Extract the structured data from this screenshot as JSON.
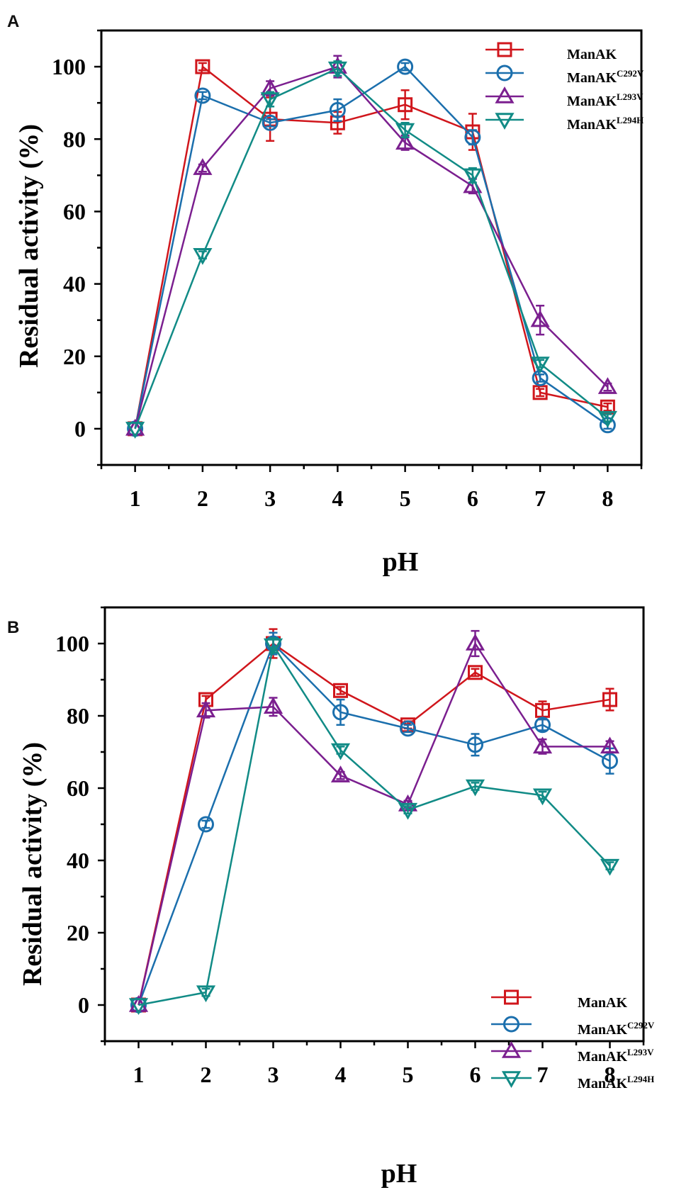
{
  "chart_data": [
    {
      "panel": "A",
      "type": "line",
      "xlabel": "pH",
      "ylabel": "Residual activity (%)",
      "x": [
        1,
        2,
        3,
        4,
        5,
        6,
        7,
        8
      ],
      "xlim": [
        0.5,
        8.5
      ],
      "ylim": [
        -10,
        110
      ],
      "xticks": [
        1,
        2,
        3,
        4,
        5,
        6,
        7,
        8
      ],
      "yticks": [
        0,
        20,
        40,
        60,
        80,
        100
      ],
      "legend_position": "top-right",
      "series": [
        {
          "name": "ManAK",
          "sup": "",
          "marker": "square",
          "color": "#d0161c",
          "values": [
            0,
            100,
            85.5,
            84.5,
            89.5,
            82,
            10,
            6
          ],
          "errors": [
            0,
            1,
            6,
            3,
            4,
            5,
            1,
            1
          ]
        },
        {
          "name": "ManAK",
          "sup": "C292V",
          "marker": "circle",
          "color": "#1b6fad",
          "values": [
            0,
            92,
            84.5,
            88,
            100,
            80.5,
            14,
            1
          ],
          "errors": [
            0,
            1,
            1,
            3,
            1,
            2,
            1,
            1
          ]
        },
        {
          "name": "ManAK",
          "sup": "L293V",
          "marker": "triangle-up",
          "color": "#7b1f8f",
          "values": [
            0,
            72,
            94,
            100,
            79,
            67,
            30,
            11.5
          ],
          "errors": [
            0,
            1,
            2,
            3,
            2,
            2,
            4,
            1
          ]
        },
        {
          "name": "ManAK",
          "sup": "L294H",
          "marker": "triangle-down",
          "color": "#118b86",
          "values": [
            0,
            48,
            91,
            99.5,
            82.5,
            70,
            18,
            3
          ],
          "errors": [
            0,
            1,
            2,
            2,
            2,
            2,
            1,
            1
          ]
        }
      ]
    },
    {
      "panel": "B",
      "type": "line",
      "xlabel": "pH",
      "ylabel": "Residual activity (%)",
      "x": [
        1,
        2,
        3,
        4,
        5,
        6,
        7,
        8
      ],
      "xlim": [
        0.5,
        8.5
      ],
      "ylim": [
        -10,
        110
      ],
      "xticks": [
        1,
        2,
        3,
        4,
        5,
        6,
        7,
        8
      ],
      "yticks": [
        0,
        20,
        40,
        60,
        80,
        100
      ],
      "legend_position": "bottom-right",
      "series": [
        {
          "name": "ManAK",
          "sup": "",
          "marker": "square",
          "color": "#d0161c",
          "values": [
            0,
            84.5,
            100,
            87,
            77.5,
            92,
            81.5,
            84.5
          ],
          "errors": [
            0,
            1,
            4,
            1,
            1,
            1,
            2.5,
            3
          ]
        },
        {
          "name": "ManAK",
          "sup": "C292V",
          "marker": "circle",
          "color": "#1b6fad",
          "values": [
            0,
            50,
            100,
            81,
            76.5,
            72,
            77.5,
            67.5
          ],
          "errors": [
            0,
            1,
            3,
            3.5,
            1,
            3,
            1.5,
            3.5
          ]
        },
        {
          "name": "ManAK",
          "sup": "L293V",
          "marker": "triangle-up",
          "color": "#7b1f8f",
          "values": [
            0,
            81.5,
            82.5,
            63.5,
            55.5,
            100,
            71.5,
            71.5
          ],
          "errors": [
            0,
            2,
            2.5,
            1,
            1,
            3.5,
            2,
            1.5
          ]
        },
        {
          "name": "ManAK",
          "sup": "L294H",
          "marker": "triangle-down",
          "color": "#118b86",
          "values": [
            0,
            3.5,
            99.5,
            70.5,
            54,
            60.5,
            58,
            38.5
          ],
          "errors": [
            0,
            1,
            2,
            1,
            1,
            1,
            1,
            1
          ]
        }
      ]
    }
  ]
}
